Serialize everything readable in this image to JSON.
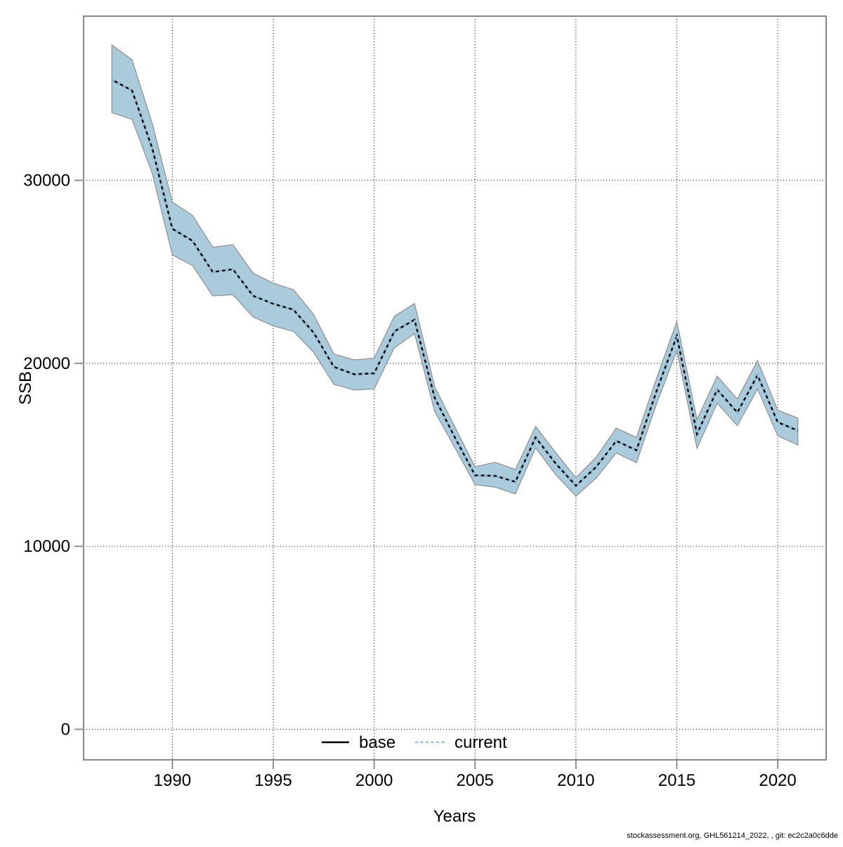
{
  "chart_data": {
    "type": "line",
    "title": "",
    "xlabel": "Years",
    "ylabel": "SSB",
    "x_ticks": [
      1990,
      1995,
      2000,
      2005,
      2010,
      2015,
      2020
    ],
    "y_ticks": [
      0,
      10000,
      20000,
      30000
    ],
    "xlim": [
      1985.6,
      2022.4
    ],
    "ylim": [
      -1670,
      38970
    ],
    "grid": true,
    "legend_position": "bottom-center-inside",
    "years": [
      1987,
      1988,
      1989,
      1990,
      1991,
      1992,
      1993,
      1994,
      1995,
      1996,
      1997,
      1998,
      1999,
      2000,
      2001,
      2002,
      2003,
      2004,
      2005,
      2006,
      2007,
      2008,
      2009,
      2010,
      2011,
      2012,
      2013,
      2014,
      2015,
      2016,
      2017,
      2018,
      2019,
      2020,
      2021
    ],
    "series": [
      {
        "name": "base",
        "line_style": "solid",
        "color": "#000000",
        "values": [
          35500,
          34910,
          31760,
          27350,
          26690,
          24990,
          25140,
          23690,
          23250,
          22930,
          21680,
          19810,
          19400,
          19450,
          21740,
          22380,
          18120,
          15950,
          13880,
          13850,
          13520,
          15950,
          14520,
          13310,
          14330,
          15760,
          15250,
          18500,
          21490,
          16140,
          18560,
          17310,
          19350,
          16780,
          16320
        ]
      },
      {
        "name": "current",
        "line_style": "dashed",
        "color": "#92c3dc",
        "values": [
          35500,
          34910,
          31760,
          27350,
          26690,
          24990,
          25140,
          23690,
          23250,
          22930,
          21680,
          19810,
          19400,
          19450,
          21740,
          22380,
          18120,
          15950,
          13880,
          13850,
          13520,
          15950,
          14520,
          13310,
          14330,
          15760,
          15250,
          18500,
          21490,
          16140,
          18560,
          17310,
          19350,
          16780,
          16320
        ],
        "band_high": [
          37400,
          36590,
          33120,
          28810,
          28080,
          26350,
          26480,
          24930,
          24380,
          24020,
          22670,
          20510,
          20190,
          20280,
          22570,
          23270,
          18720,
          16520,
          14350,
          14590,
          14200,
          16550,
          15120,
          13750,
          14870,
          16460,
          15950,
          19200,
          22280,
          16930,
          19300,
          18050,
          20150,
          17440,
          17010
        ],
        "band_low": [
          33700,
          33330,
          30390,
          25920,
          25340,
          23680,
          23750,
          22530,
          22040,
          21750,
          20600,
          18850,
          18540,
          18600,
          20850,
          21620,
          17360,
          15390,
          13370,
          13230,
          12860,
          15380,
          13910,
          12740,
          13720,
          15100,
          14570,
          17800,
          20690,
          15350,
          17820,
          16590,
          18590,
          16040,
          15530
        ],
        "band_color": "#a9cbdc",
        "band_edge_color": "#8f8f8f"
      }
    ],
    "legend": {
      "base_label": "base",
      "current_label": "current"
    }
  },
  "footer": {
    "text": "stockassessment.org, GHL561214_2022, , git: ec2c2a0c6dde"
  },
  "colors": {
    "frame": "#898989",
    "grid": "#2e2e2e",
    "tick": "#858585",
    "band_fill": "#a9cbdc",
    "band_edge": "#8f8f8f",
    "current_line": "#92c3dc",
    "base_line": "#000000"
  }
}
